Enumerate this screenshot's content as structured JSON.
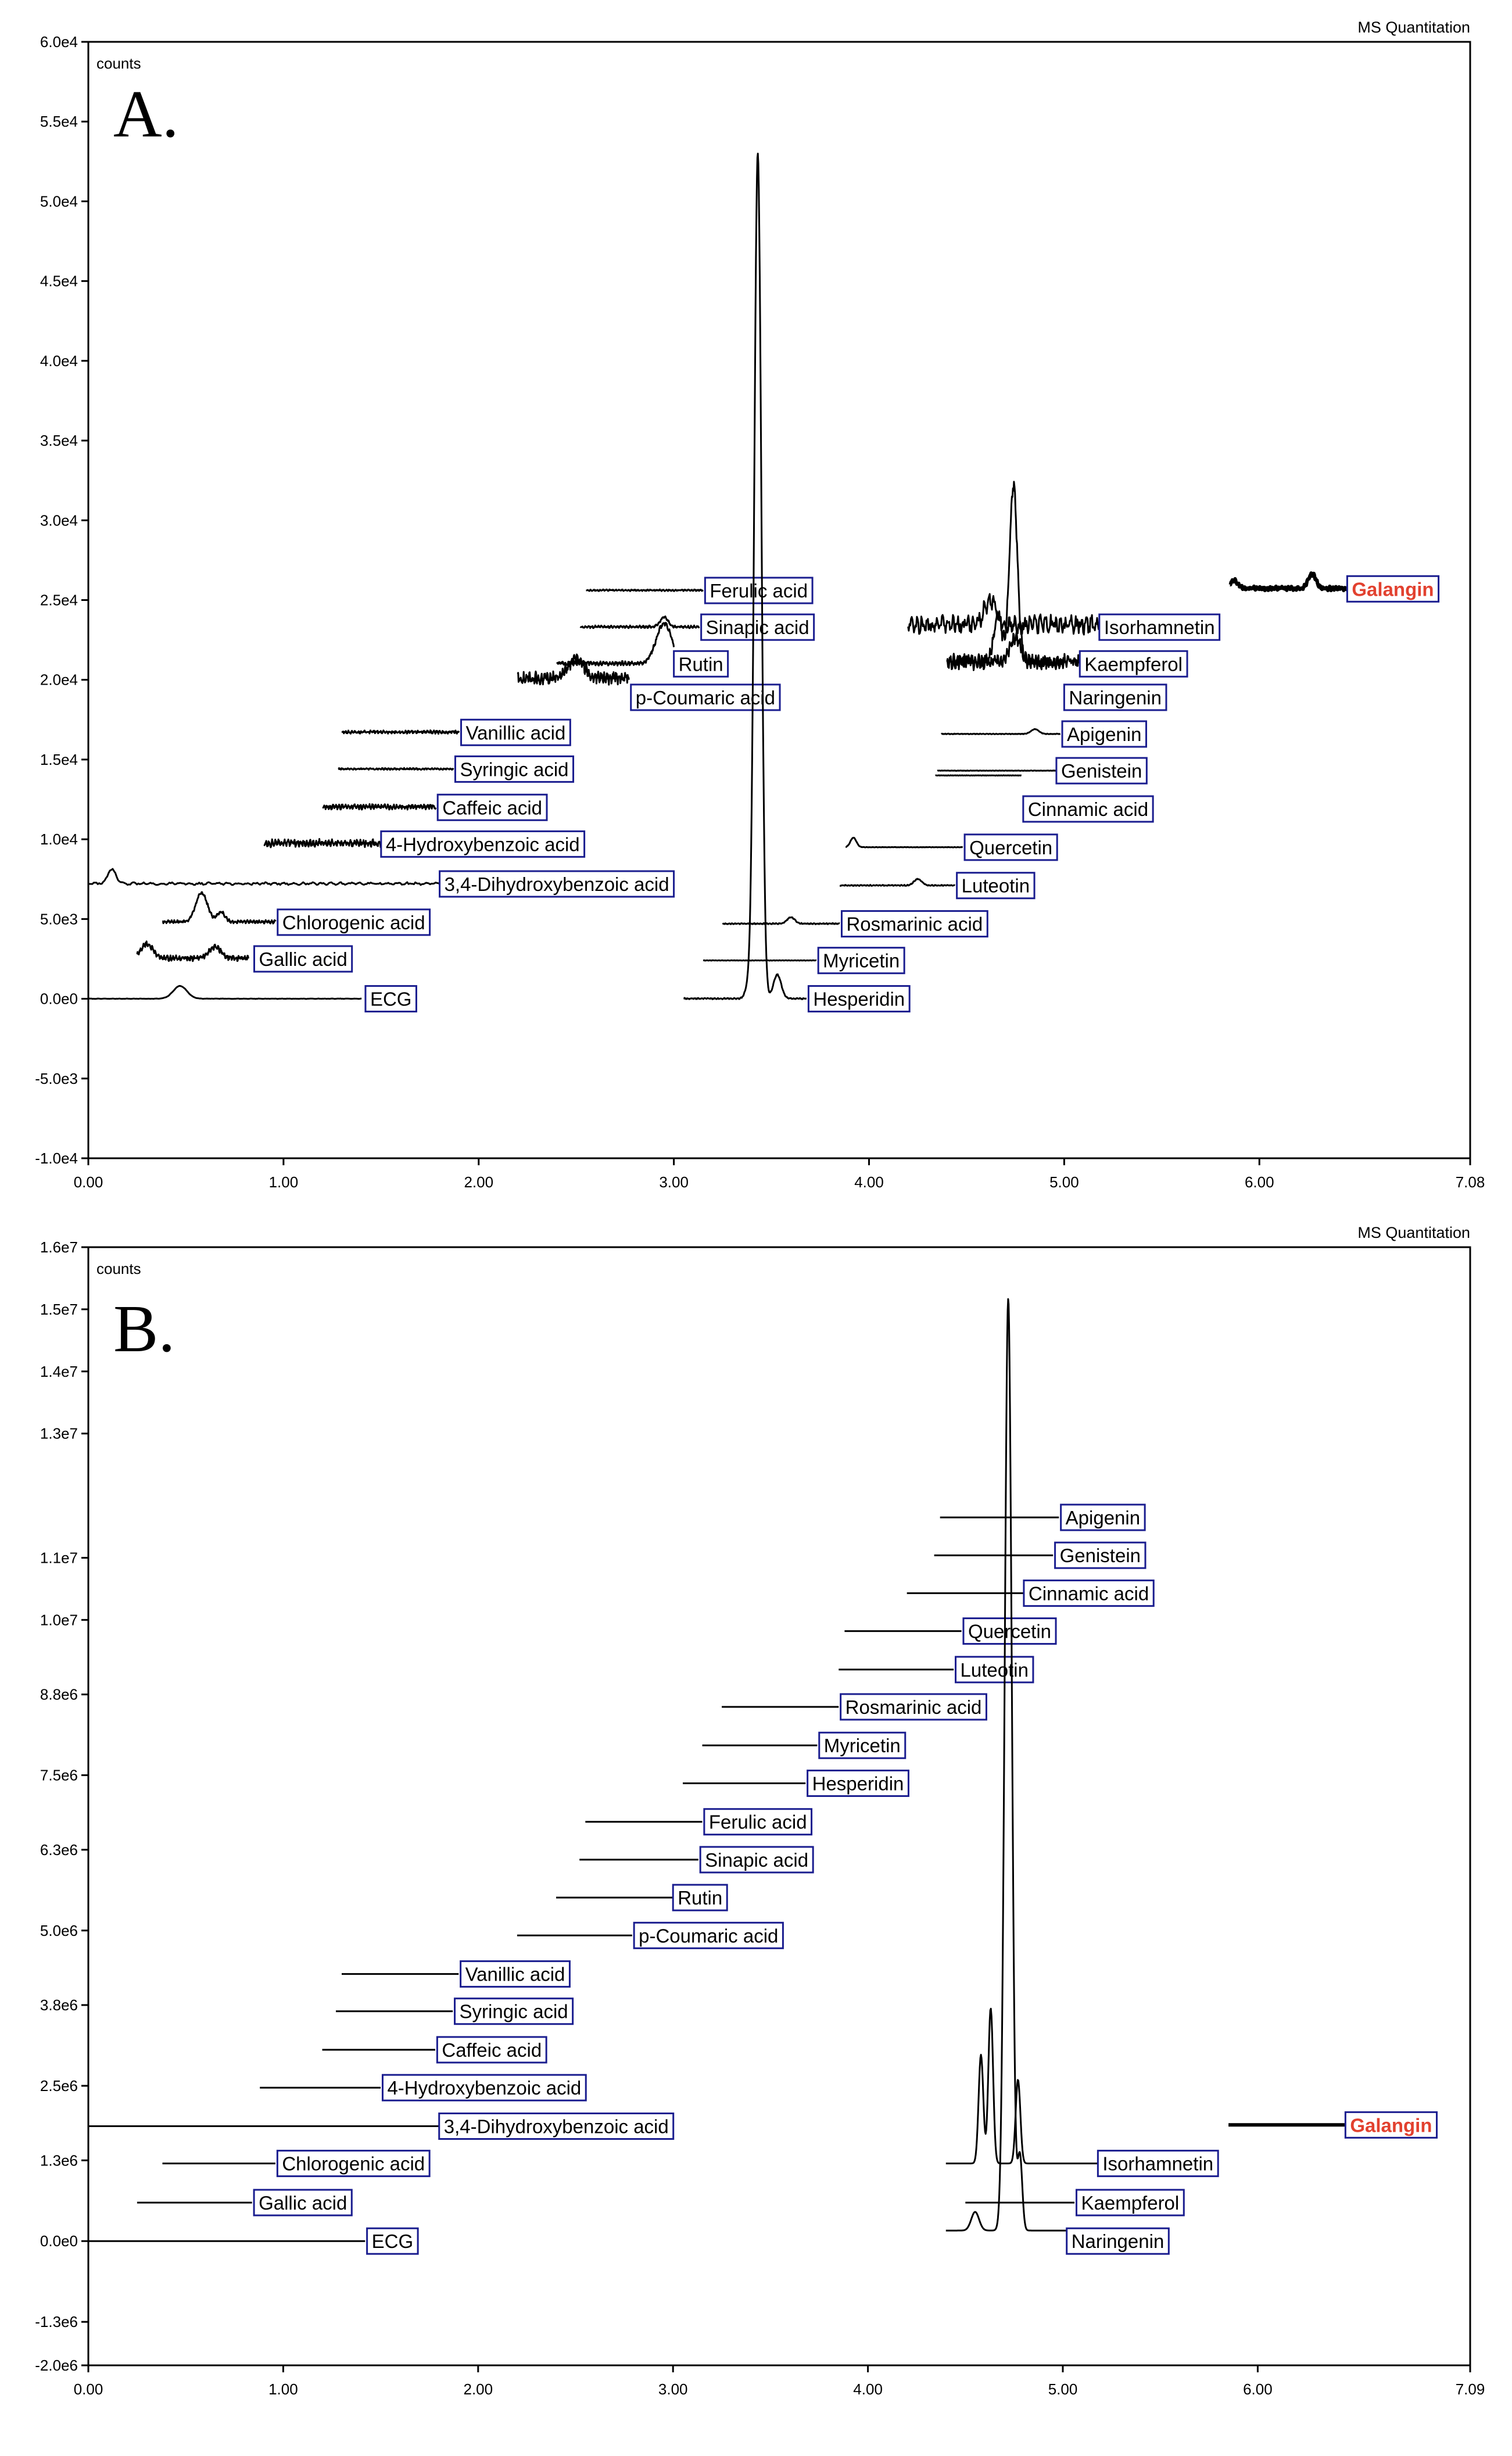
{
  "colors": {
    "label_border": "#1a1d8f",
    "highlight": "#e2412f",
    "trace": "#000000"
  },
  "chart_data": [
    {
      "type": "line",
      "panel_label": "A.",
      "title": "MS Quantitation",
      "ylabel": "counts",
      "xlim": [
        0,
        7.08
      ],
      "ylim": [
        -10000,
        60000
      ],
      "x_ticks": [
        0,
        1,
        2,
        3,
        4,
        5,
        6,
        7.08
      ],
      "x_tick_labels": [
        "0.00",
        "1.00",
        "2.00",
        "3.00",
        "4.00",
        "5.00",
        "6.00",
        "7.08"
      ],
      "y_ticks": [
        -10000,
        -5000,
        0,
        5000,
        10000,
        15000,
        20000,
        25000,
        30000,
        35000,
        40000,
        45000,
        50000,
        55000,
        60000
      ],
      "y_tick_labels": [
        "-1.0e4",
        "-5.0e3",
        "0.0e0",
        "5.0e3",
        "1.0e4",
        "1.5e4",
        "2.0e4",
        "2.5e4",
        "3.0e4",
        "3.5e4",
        "4.0e4",
        "4.5e4",
        "5.0e4",
        "5.5e4",
        "6.0e4"
      ],
      "series": [
        {
          "name": "ECG",
          "x_range": [
            0.0,
            1.4
          ],
          "baseline": 0,
          "label_x": 1.42,
          "label_y": 0,
          "peaks": [
            [
              0.47,
              800,
              0.035
            ]
          ],
          "noise": 0.02
        },
        {
          "name": "Gallic acid",
          "x_range": [
            0.25,
            0.82
          ],
          "baseline": 2500,
          "label_x": 0.85,
          "label_y": 2500,
          "peaks": [
            [
              0.3,
              900,
              0.03
            ],
            [
              0.65,
              700,
              0.03
            ]
          ],
          "noise": 0.25
        },
        {
          "name": "Chlorogenic acid",
          "x_range": [
            0.38,
            0.96
          ],
          "baseline": 4800,
          "label_x": 0.97,
          "label_y": 4800,
          "peaks": [
            [
              0.58,
              1800,
              0.03
            ],
            [
              0.68,
              600,
              0.02
            ]
          ],
          "noise": 0.15
        },
        {
          "name": "3,4-Dihydroxybenzoic acid",
          "x_range": [
            0.0,
            1.8
          ],
          "baseline": 7200,
          "label_x": 1.8,
          "label_y": 7200,
          "peaks": [
            [
              0.12,
              900,
              0.02
            ]
          ],
          "noise": 0.12
        },
        {
          "name": "4-Hydroxybenzoic acid",
          "x_range": [
            0.9,
            1.5
          ],
          "baseline": 9700,
          "label_x": 1.5,
          "label_y": 9700,
          "peaks": [],
          "noise": 0.35
        },
        {
          "name": "Caffeic acid",
          "x_range": [
            1.2,
            1.78
          ],
          "baseline": 12000,
          "label_x": 1.79,
          "label_y": 12000,
          "peaks": [],
          "noise": 0.25
        },
        {
          "name": "Syringic acid",
          "x_range": [
            1.28,
            1.87
          ],
          "baseline": 14400,
          "label_x": 1.88,
          "label_y": 14400,
          "peaks": [],
          "noise": 0.08
        },
        {
          "name": "Vanillic acid",
          "x_range": [
            1.3,
            1.9
          ],
          "baseline": 16700,
          "label_x": 1.91,
          "label_y": 16700,
          "peaks": [],
          "noise": 0.15
        },
        {
          "name": "p-Coumaric acid",
          "x_range": [
            2.2,
            2.77
          ],
          "baseline": 20000,
          "label_x": 2.78,
          "label_y": 18900,
          "peaks": [
            [
              2.5,
              1200,
              0.04
            ]
          ],
          "noise": 0.6
        },
        {
          "name": "Rutin",
          "x_range": [
            2.4,
            3.0
          ],
          "baseline": 21000,
          "label_x": 3.0,
          "label_y": 21000,
          "peaks": [
            [
              2.95,
              2500,
              0.04
            ]
          ],
          "noise": 0.2
        },
        {
          "name": "Sinapic acid",
          "x_range": [
            2.52,
            3.13
          ],
          "baseline": 23300,
          "label_x": 3.14,
          "label_y": 23300,
          "peaks": [
            [
              2.95,
              600,
              0.02
            ]
          ],
          "noise": 0.12
        },
        {
          "name": "Ferulic acid",
          "x_range": [
            2.55,
            3.15
          ],
          "baseline": 25600,
          "label_x": 3.16,
          "label_y": 25600,
          "peaks": [],
          "noise": 0.08
        },
        {
          "name": "Hesperidin",
          "x_range": [
            3.05,
            3.68
          ],
          "baseline": 0,
          "label_x": 3.69,
          "label_y": 0,
          "peaks": [
            [
              3.43,
              53000,
              0.018
            ],
            [
              3.53,
              1500,
              0.02
            ],
            [
              3.38,
              700,
              0.015
            ]
          ],
          "noise": 0.06
        },
        {
          "name": "Myricetin",
          "x_range": [
            3.15,
            3.73
          ],
          "baseline": 2400,
          "label_x": 3.74,
          "label_y": 2400,
          "peaks": [],
          "noise": 0.02
        },
        {
          "name": "Rosmarinic acid",
          "x_range": [
            3.25,
            3.85
          ],
          "baseline": 4700,
          "label_x": 3.86,
          "label_y": 4700,
          "peaks": [
            [
              3.6,
              400,
              0.02
            ]
          ],
          "noise": 0.05
        },
        {
          "name": "Luteotin",
          "x_range": [
            3.85,
            4.44
          ],
          "baseline": 7100,
          "label_x": 4.45,
          "label_y": 7100,
          "peaks": [
            [
              4.25,
              400,
              0.02
            ]
          ],
          "noise": 0.05
        },
        {
          "name": "Quercetin",
          "x_range": [
            3.88,
            4.48
          ],
          "baseline": 9500,
          "label_x": 4.49,
          "label_y": 9500,
          "peaks": [
            [
              3.92,
              600,
              0.015
            ]
          ],
          "noise": 0.02
        },
        {
          "name": "Cinnamic acid",
          "x_range": [
            4.34,
            4.78
          ],
          "baseline": 14000,
          "label_x": 4.79,
          "label_y": 11900,
          "peaks": [],
          "noise": 0.02
        },
        {
          "name": "Genistein",
          "x_range": [
            4.35,
            4.96
          ],
          "baseline": 14300,
          "label_x": 4.96,
          "label_y": 14300,
          "peaks": [],
          "noise": 0.02
        },
        {
          "name": "Apigenin",
          "x_range": [
            4.37,
            4.98
          ],
          "baseline": 16600,
          "label_x": 4.99,
          "label_y": 16600,
          "peaks": [
            [
              4.85,
              300,
              0.02
            ]
          ],
          "noise": 0.03
        },
        {
          "name": "Naringenin",
          "x_range": [
            4.4,
            5.0
          ],
          "baseline": 21000,
          "label_x": 5.0,
          "label_y": 18900,
          "peaks": [
            [
              4.75,
              1500,
              0.03
            ]
          ],
          "noise": 0.6
        },
        {
          "name": "Kaempferol",
          "x_range": [
            4.4,
            5.08
          ],
          "baseline": 21000,
          "label_x": 5.08,
          "label_y": 21000,
          "peaks": [
            [
              4.74,
              11000,
              0.02
            ],
            [
              4.66,
              3000,
              0.02
            ]
          ],
          "noise": 0.7
        },
        {
          "name": "Isorhamnetin",
          "x_range": [
            4.2,
            5.18
          ],
          "baseline": 23300,
          "label_x": 5.18,
          "label_y": 23300,
          "peaks": [
            [
              4.62,
              1500,
              0.03
            ]
          ],
          "noise": 0.9
        },
        {
          "name": "Galangin",
          "x_range": [
            5.85,
            6.45
          ],
          "baseline": 25700,
          "label_x": 6.45,
          "label_y": 25700,
          "peaks": [
            [
              6.27,
              900,
              0.02
            ],
            [
              5.87,
              500,
              0.02
            ]
          ],
          "noise": 0.18,
          "bold": true,
          "highlight": true
        }
      ]
    },
    {
      "type": "line",
      "panel_label": "B.",
      "title": "MS Quantitation",
      "ylabel": "counts",
      "xlim": [
        0,
        7.09
      ],
      "ylim": [
        -2000000,
        16000000
      ],
      "x_ticks": [
        0,
        1,
        2,
        3,
        4,
        5,
        6,
        7.09
      ],
      "x_tick_labels": [
        "0.00",
        "1.00",
        "2.00",
        "3.00",
        "4.00",
        "5.00",
        "6.00",
        "7.09"
      ],
      "y_ticks": [
        -2000000,
        -1300000,
        0,
        1300000,
        2500000,
        3800000,
        5000000,
        6300000,
        7500000,
        8800000,
        10000000,
        11000000,
        13000000,
        14000000,
        15000000,
        16000000
      ],
      "y_tick_labels": [
        "-2.0e6",
        "-1.3e6",
        "0.0e0",
        "1.3e6",
        "2.5e6",
        "3.8e6",
        "5.0e6",
        "6.3e6",
        "7.5e6",
        "8.8e6",
        "1.0e7",
        "1.1e7",
        "1.3e7",
        "1.4e7",
        "1.5e7",
        "1.6e7"
      ],
      "series": [
        {
          "name": "ECG",
          "x_range": [
            0.0,
            1.42
          ],
          "baseline": 0,
          "label_x": 1.43,
          "label_y": 0,
          "peaks": [],
          "noise": 0
        },
        {
          "name": "Gallic acid",
          "x_range": [
            0.25,
            0.84
          ],
          "baseline": 620000,
          "label_x": 0.85,
          "label_y": 620000,
          "peaks": [],
          "noise": 0
        },
        {
          "name": "Chlorogenic acid",
          "x_range": [
            0.38,
            0.96
          ],
          "baseline": 1250000,
          "label_x": 0.97,
          "label_y": 1250000,
          "peaks": [],
          "noise": 0
        },
        {
          "name": "3,4-Dihydroxybenzoic acid",
          "x_range": [
            0.0,
            1.8
          ],
          "baseline": 1850000,
          "label_x": 1.8,
          "label_y": 1850000,
          "peaks": [],
          "noise": 0
        },
        {
          "name": "4-Hydroxybenzoic acid",
          "x_range": [
            0.88,
            1.5
          ],
          "baseline": 2470000,
          "label_x": 1.51,
          "label_y": 2470000,
          "peaks": [],
          "noise": 0
        },
        {
          "name": "Caffeic acid",
          "x_range": [
            1.2,
            1.78
          ],
          "baseline": 3080000,
          "label_x": 1.79,
          "label_y": 3080000,
          "peaks": [],
          "noise": 0
        },
        {
          "name": "Syringic acid",
          "x_range": [
            1.27,
            1.87
          ],
          "baseline": 3700000,
          "label_x": 1.88,
          "label_y": 3700000,
          "peaks": [],
          "noise": 0
        },
        {
          "name": "Vanillic acid",
          "x_range": [
            1.3,
            1.9
          ],
          "baseline": 4300000,
          "label_x": 1.91,
          "label_y": 4300000,
          "peaks": [],
          "noise": 0
        },
        {
          "name": "p-Coumaric acid",
          "x_range": [
            2.2,
            2.79
          ],
          "baseline": 4920000,
          "label_x": 2.8,
          "label_y": 4920000,
          "peaks": [],
          "noise": 0
        },
        {
          "name": "Rutin",
          "x_range": [
            2.4,
            3.0
          ],
          "baseline": 5530000,
          "label_x": 3.0,
          "label_y": 5530000,
          "peaks": [],
          "noise": 0
        },
        {
          "name": "Sinapic acid",
          "x_range": [
            2.52,
            3.13
          ],
          "baseline": 6140000,
          "label_x": 3.14,
          "label_y": 6140000,
          "peaks": [],
          "noise": 0
        },
        {
          "name": "Ferulic acid",
          "x_range": [
            2.55,
            3.15
          ],
          "baseline": 6750000,
          "label_x": 3.16,
          "label_y": 6750000,
          "peaks": [],
          "noise": 0
        },
        {
          "name": "Hesperidin",
          "x_range": [
            3.05,
            3.68
          ],
          "baseline": 7370000,
          "label_x": 3.69,
          "label_y": 7370000,
          "peaks": [],
          "noise": 0
        },
        {
          "name": "Myricetin",
          "x_range": [
            3.15,
            3.74
          ],
          "baseline": 7980000,
          "label_x": 3.75,
          "label_y": 7980000,
          "peaks": [],
          "noise": 0
        },
        {
          "name": "Rosmarinic acid",
          "x_range": [
            3.25,
            3.85
          ],
          "baseline": 8600000,
          "label_x": 3.86,
          "label_y": 8600000,
          "peaks": [],
          "noise": 0
        },
        {
          "name": "Luteotin",
          "x_range": [
            3.85,
            4.44
          ],
          "baseline": 9200000,
          "label_x": 4.45,
          "label_y": 9200000,
          "peaks": [],
          "noise": 0
        },
        {
          "name": "Quercetin",
          "x_range": [
            3.88,
            4.48
          ],
          "baseline": 9820000,
          "label_x": 4.49,
          "label_y": 9820000,
          "peaks": [],
          "noise": 0
        },
        {
          "name": "Cinnamic acid",
          "x_range": [
            4.2,
            4.8
          ],
          "baseline": 10430000,
          "label_x": 4.8,
          "label_y": 10430000,
          "peaks": [],
          "noise": 0
        },
        {
          "name": "Genistein",
          "x_range": [
            4.34,
            4.95
          ],
          "baseline": 11040000,
          "label_x": 4.96,
          "label_y": 11040000,
          "peaks": [],
          "noise": 0
        },
        {
          "name": "Apigenin",
          "x_range": [
            4.37,
            4.98
          ],
          "baseline": 11650000,
          "label_x": 4.99,
          "label_y": 11650000,
          "peaks": [],
          "noise": 0
        },
        {
          "name": "Naringenin",
          "x_range": [
            4.4,
            5.02
          ],
          "baseline": 170000,
          "label_x": 5.02,
          "label_y": 0,
          "peaks": [
            [
              4.72,
              15000000,
              0.018
            ],
            [
              4.78,
              1200000,
              0.012
            ],
            [
              4.55,
              300000,
              0.02
            ]
          ],
          "noise": 0
        },
        {
          "name": "Kaempferol",
          "x_range": [
            4.5,
            5.06
          ],
          "baseline": 620000,
          "label_x": 5.07,
          "label_y": 620000,
          "peaks": [],
          "noise": 0
        },
        {
          "name": "Isorhamnetin",
          "x_range": [
            4.4,
            5.18
          ],
          "baseline": 1250000,
          "label_x": 5.18,
          "label_y": 1250000,
          "peaks": [
            [
              4.58,
              1750000,
              0.012
            ],
            [
              4.63,
              2500000,
              0.012
            ],
            [
              4.77,
              1350000,
              0.012
            ]
          ],
          "noise": 0
        },
        {
          "name": "Galangin",
          "x_range": [
            5.85,
            6.45
          ],
          "baseline": 1870000,
          "label_x": 6.45,
          "label_y": 1870000,
          "peaks": [],
          "noise": 0,
          "bold": true,
          "highlight": true
        }
      ]
    }
  ]
}
